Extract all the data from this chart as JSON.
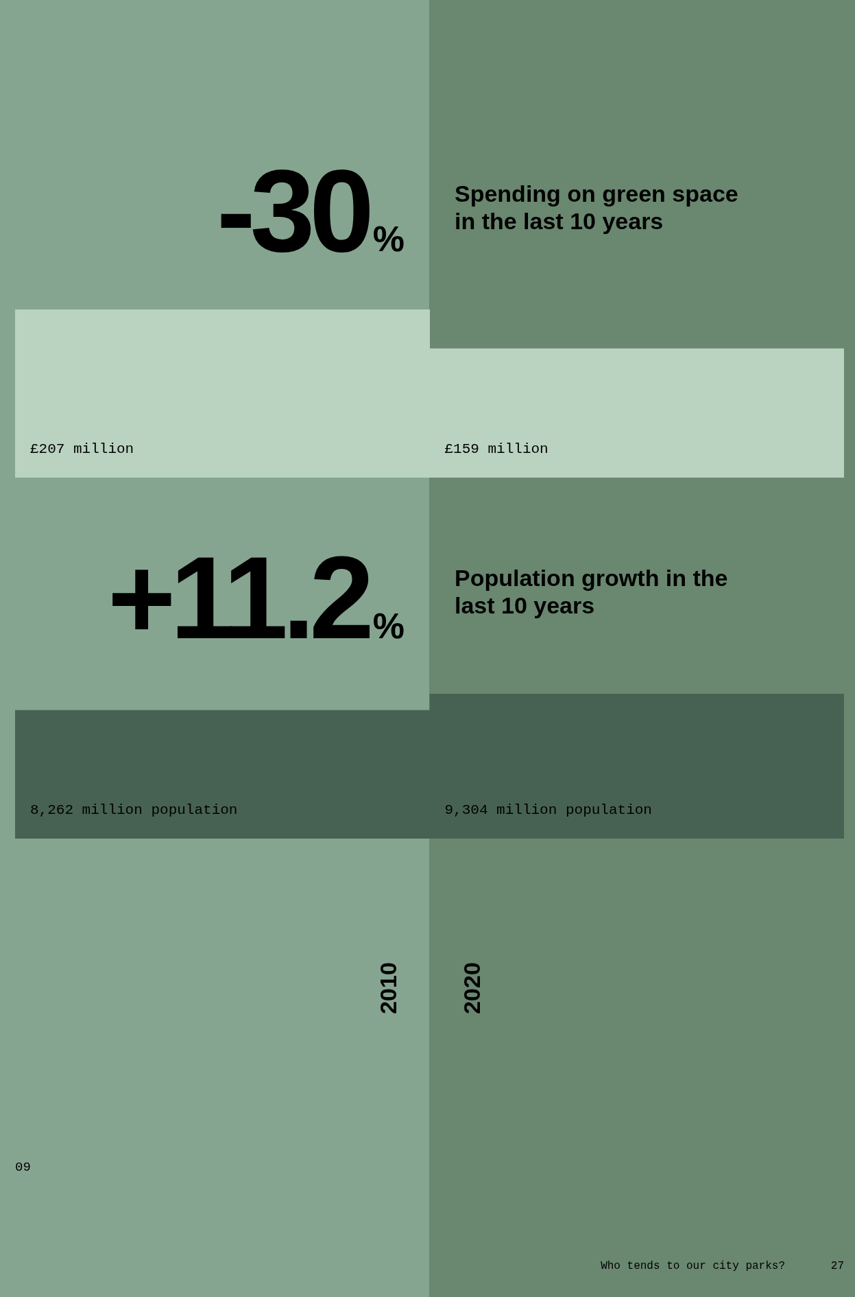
{
  "chart_data": [
    {
      "type": "bar",
      "title": "Spending on green space in the last 10 years",
      "categories": [
        null,
        null
      ],
      "series": [
        {
          "color": "#bad3c1",
          "values": [
            207,
            159
          ],
          "value_labels": [
            "£207 million",
            "£159 million"
          ]
        }
      ],
      "annotations": [
        "-30%"
      ]
    },
    {
      "type": "bar",
      "title": "Population growth in the last 10 years",
      "categories": [
        null,
        null
      ],
      "series": [
        {
          "color": "#476253",
          "values": [
            8262,
            9304
          ],
          "value_labels": [
            "8,262 million population",
            "9,304 million population"
          ]
        }
      ],
      "annotations": [
        "+11.2%",
        "09",
        "Who tends to our city parks?",
        "27",
        "2010",
        "2020"
      ]
    }
  ]
}
